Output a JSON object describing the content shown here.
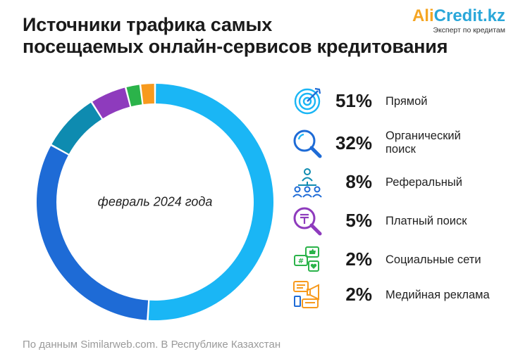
{
  "header": {
    "title_line1": "Источники трафика самых",
    "title_line2": "посещаемых онлайн-сервисов кредитования"
  },
  "logo": {
    "name_part1": "Ali",
    "name_part2": "Credit.kz",
    "tagline": "Эксперт по кредитам"
  },
  "chart_data": {
    "type": "pie",
    "donut": true,
    "center_label": "февраль 2024 года",
    "legend_placement": "right",
    "categories": [
      "Прямой",
      "Органический поиск",
      "Реферальный",
      "Платный поиск",
      "Социальные сети",
      "Медийная реклама"
    ],
    "values": [
      51,
      32,
      8,
      5,
      2,
      2
    ],
    "value_labels": [
      "51%",
      "32%",
      "8%",
      "5%",
      "2%",
      "2%"
    ],
    "colors": [
      "#1ab6f5",
      "#1e6bd6",
      "#0e8bb0",
      "#8e3bbd",
      "#2bb34a",
      "#f79a1e"
    ],
    "icons": [
      "target-icon",
      "magnifier-icon",
      "referral-network-icon",
      "paid-search-icon",
      "social-media-icon",
      "media-ads-icon"
    ]
  },
  "footer": {
    "source": "По данным Similarweb.com. В Республике Казахстан"
  }
}
